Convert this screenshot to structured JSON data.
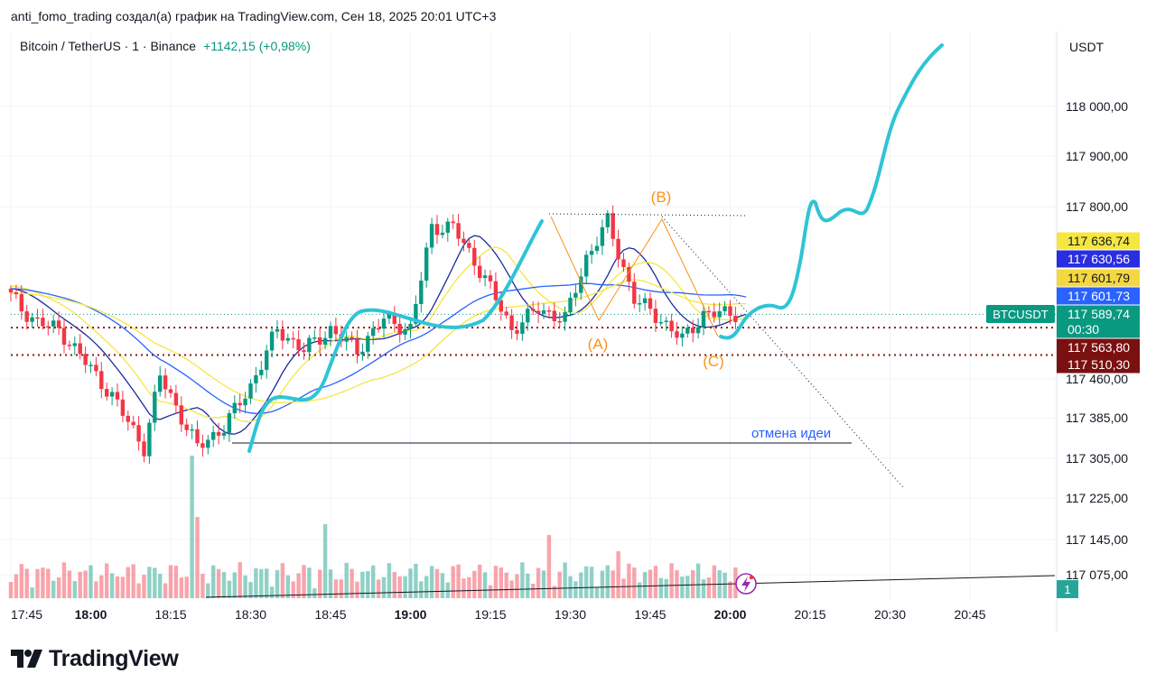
{
  "header": {
    "author_line": "anti_fomo_trading создал(а) график на TradingView.com, Сен 18, 2025 20:01 UTC+3"
  },
  "symbol": {
    "name": "Bitcoin / TetherUS · 1 · Binance",
    "change": "+1142,15 (+0,98%)"
  },
  "axis": {
    "currency": "USDT"
  },
  "logo": {
    "text": "TradingView",
    "icon": "tradingview-logo-icon"
  },
  "colors": {
    "up": "#089981",
    "down": "#f23645",
    "projection": "#2ec4d6",
    "ma_blue": "#2962ff",
    "ma_navy": "#1c2b9c",
    "ma_yellow": "#f5e642",
    "annotation_orange": "#f7931a",
    "cancel_text": "#2962ff"
  },
  "chart_data": {
    "type": "candlestick",
    "x_ticks": [
      "17:45",
      "18:00",
      "18:15",
      "18:30",
      "18:45",
      "19:00",
      "19:15",
      "19:30",
      "19:45",
      "20:00",
      "20:15",
      "20:30",
      "20:45"
    ],
    "bold_ticks": [
      "18:00",
      "19:00",
      "20:00"
    ],
    "y_ticks": [
      "118 000,00",
      "117 900,00",
      "117 800,00",
      "117 460,00",
      "117 385,00",
      "117 305,00",
      "117 225,00",
      "117 145,00",
      "117 075,00"
    ],
    "y_tick_values": [
      118000,
      117900,
      117800,
      117460,
      117385,
      117305,
      117225,
      117145,
      117075
    ],
    "price_tags": [
      {
        "label": "117 636,74",
        "price": 117636.74,
        "bg": "#f5e642",
        "fg": "#131722"
      },
      {
        "label": "117 630,56",
        "price": 117630.56,
        "bg": "#2a2ee0",
        "fg": "#ffffff"
      },
      {
        "label": "117 601,79",
        "price": 117601.79,
        "bg": "#f5d742",
        "fg": "#131722"
      },
      {
        "label": "117 601,73",
        "price": 117601.73,
        "bg": "#2962ff",
        "fg": "#ffffff"
      },
      {
        "label": "117 589,74",
        "price": 117589.74,
        "bg": "#089981",
        "fg": "#ffffff"
      },
      {
        "label": "00:30",
        "bg": "#089981",
        "fg": "#ffffff"
      },
      {
        "label": "117 563,80",
        "price": 117563.8,
        "bg": "#7a1010",
        "fg": "#ffffff"
      },
      {
        "label": "117 510,30",
        "price": 117510.3,
        "bg": "#7a1010",
        "fg": "#ffffff"
      }
    ],
    "symbol_tag": "BTCUSDT",
    "volume_tag": "1",
    "wave_labels": [
      "(A)",
      "(B)",
      "(C)"
    ],
    "cancel_label": "отмена идеи",
    "horizontal_levels": [
      117563.8,
      117510.3
    ],
    "cancel_level": 117330,
    "last_price": 117589.74,
    "projection_target": 118080
  }
}
